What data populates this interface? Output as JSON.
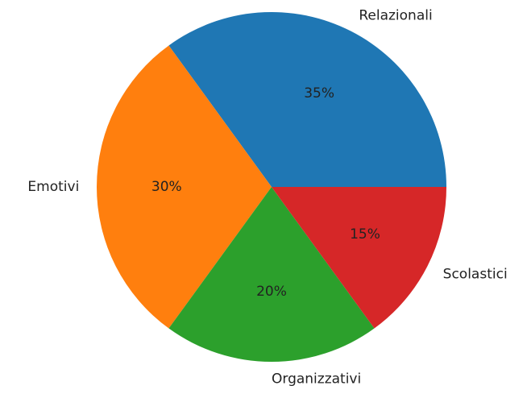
{
  "chart_data": {
    "type": "pie",
    "categories": [
      "Relazionali",
      "Emotivi",
      "Organizzativi",
      "Scolastici"
    ],
    "values": [
      35,
      30,
      20,
      15
    ],
    "value_labels": [
      "35%",
      "30%",
      "20%",
      "15%"
    ],
    "colors": [
      "#1f77b4",
      "#ff7f0e",
      "#2ca02c",
      "#d62728"
    ]
  }
}
